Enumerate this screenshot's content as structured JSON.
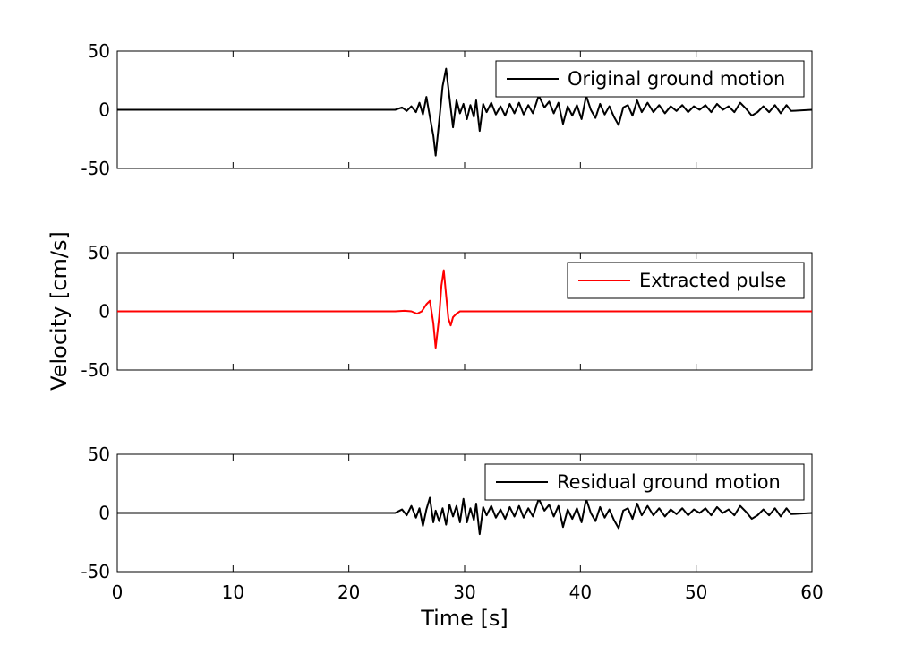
{
  "chart_data": [
    {
      "type": "line",
      "legend_position": "top-right",
      "grid": false,
      "xlim": [
        0,
        60
      ],
      "ylim": [
        -50,
        50
      ],
      "xticks": [
        0,
        10,
        20,
        30,
        40,
        50,
        60
      ],
      "yticks": [
        -50,
        0,
        50
      ],
      "show_xtick_labels": false,
      "series": [
        {
          "name": "Original ground motion",
          "color": "#000000",
          "x": [
            0,
            22,
            24,
            24.6,
            25.0,
            25.4,
            25.8,
            26.1,
            26.4,
            26.7,
            27.0,
            27.3,
            27.5,
            27.8,
            28.1,
            28.4,
            28.7,
            29.0,
            29.3,
            29.6,
            29.9,
            30.2,
            30.5,
            30.8,
            31.0,
            31.3,
            31.6,
            31.9,
            32.3,
            32.7,
            33.1,
            33.5,
            33.9,
            34.3,
            34.7,
            35.1,
            35.5,
            35.9,
            36.4,
            36.9,
            37.3,
            37.7,
            38.1,
            38.5,
            38.9,
            39.3,
            39.7,
            40.1,
            40.5,
            40.9,
            41.3,
            41.7,
            42.1,
            42.5,
            42.9,
            43.3,
            43.7,
            44.1,
            44.5,
            44.9,
            45.3,
            45.8,
            46.3,
            46.8,
            47.3,
            47.8,
            48.3,
            48.8,
            49.3,
            49.8,
            50.3,
            50.8,
            51.3,
            51.8,
            52.3,
            52.8,
            53.3,
            53.8,
            54.3,
            54.8,
            55.3,
            55.8,
            56.3,
            56.8,
            57.3,
            57.8,
            58.2,
            60
          ],
          "y": [
            0,
            0,
            0,
            2,
            -1,
            3,
            -2,
            6,
            -4,
            11,
            -6,
            -22,
            -39,
            -10,
            20,
            35,
            10,
            -15,
            8,
            -3,
            5,
            -8,
            4,
            -6,
            8,
            -18,
            5,
            -2,
            6,
            -4,
            3,
            -5,
            5,
            -3,
            6,
            -4,
            4,
            -3,
            12,
            2,
            7,
            -3,
            6,
            -12,
            3,
            -5,
            4,
            -8,
            12,
            0,
            -7,
            5,
            -4,
            3,
            -6,
            -13,
            2,
            4,
            -5,
            8,
            -2,
            6,
            -2,
            4,
            -3,
            3,
            -1,
            4,
            -2,
            3,
            0,
            4,
            -2,
            5,
            0,
            3,
            -2,
            6,
            1,
            -5,
            -2,
            3,
            -2,
            4,
            -3,
            4,
            -1,
            0
          ]
        }
      ]
    },
    {
      "type": "line",
      "legend_position": "top-right",
      "grid": false,
      "xlim": [
        0,
        60
      ],
      "ylim": [
        -50,
        50
      ],
      "xticks": [
        0,
        10,
        20,
        30,
        40,
        50,
        60
      ],
      "yticks": [
        -50,
        0,
        50
      ],
      "show_xtick_labels": false,
      "series": [
        {
          "name": "Extracted pulse",
          "color": "#ff0000",
          "x": [
            0,
            24,
            24.8,
            25.4,
            25.9,
            26.3,
            26.7,
            27.0,
            27.3,
            27.5,
            27.8,
            28.0,
            28.2,
            28.4,
            28.6,
            28.8,
            29.0,
            29.3,
            29.6,
            30.0,
            31.0,
            60
          ],
          "y": [
            0,
            0,
            0.5,
            0,
            -2,
            0,
            6,
            9,
            -10,
            -31,
            -5,
            22,
            35,
            14,
            -6,
            -12,
            -5,
            -2,
            0,
            0,
            0,
            0
          ]
        }
      ]
    },
    {
      "type": "line",
      "legend_position": "top-right",
      "grid": false,
      "xlim": [
        0,
        60
      ],
      "ylim": [
        -50,
        50
      ],
      "xticks": [
        0,
        10,
        20,
        30,
        40,
        50,
        60
      ],
      "yticks": [
        -50,
        0,
        50
      ],
      "xlabel": "Time [s]",
      "show_xtick_labels": true,
      "series": [
        {
          "name": "Residual ground motion",
          "color": "#000000",
          "x": [
            0,
            22,
            24,
            24.6,
            25.0,
            25.4,
            25.8,
            26.1,
            26.4,
            26.7,
            27.0,
            27.3,
            27.5,
            27.8,
            28.1,
            28.4,
            28.7,
            29.0,
            29.3,
            29.6,
            29.9,
            30.2,
            30.5,
            30.8,
            31.0,
            31.3,
            31.6,
            31.9,
            32.3,
            32.7,
            33.1,
            33.5,
            33.9,
            34.3,
            34.7,
            35.1,
            35.5,
            35.9,
            36.4,
            36.9,
            37.3,
            37.7,
            38.1,
            38.5,
            38.9,
            39.3,
            39.7,
            40.1,
            40.5,
            40.9,
            41.3,
            41.7,
            42.1,
            42.5,
            42.9,
            43.3,
            43.7,
            44.1,
            44.5,
            44.9,
            45.3,
            45.8,
            46.3,
            46.8,
            47.3,
            47.8,
            48.3,
            48.8,
            49.3,
            49.8,
            50.3,
            50.8,
            51.3,
            51.8,
            52.3,
            52.8,
            53.3,
            53.8,
            54.3,
            54.8,
            55.3,
            55.8,
            56.3,
            56.8,
            57.3,
            57.8,
            58.2,
            60
          ],
          "y": [
            0,
            0,
            0,
            3,
            -2,
            6,
            -4,
            4,
            -11,
            3,
            13,
            -8,
            2,
            -7,
            4,
            -10,
            7,
            -3,
            6,
            -8,
            12,
            -8,
            4,
            -6,
            8,
            -18,
            5,
            -2,
            6,
            -4,
            3,
            -5,
            5,
            -3,
            6,
            -4,
            4,
            -3,
            12,
            2,
            7,
            -3,
            6,
            -12,
            3,
            -5,
            4,
            -8,
            12,
            0,
            -7,
            5,
            -4,
            3,
            -6,
            -13,
            2,
            4,
            -5,
            8,
            -2,
            6,
            -2,
            4,
            -3,
            3,
            -1,
            4,
            -2,
            3,
            0,
            4,
            -2,
            5,
            0,
            3,
            -2,
            6,
            1,
            -5,
            -2,
            3,
            -2,
            4,
            -3,
            4,
            -1,
            0
          ]
        }
      ]
    }
  ],
  "shared_ylabel": "Velocity [cm/s]"
}
